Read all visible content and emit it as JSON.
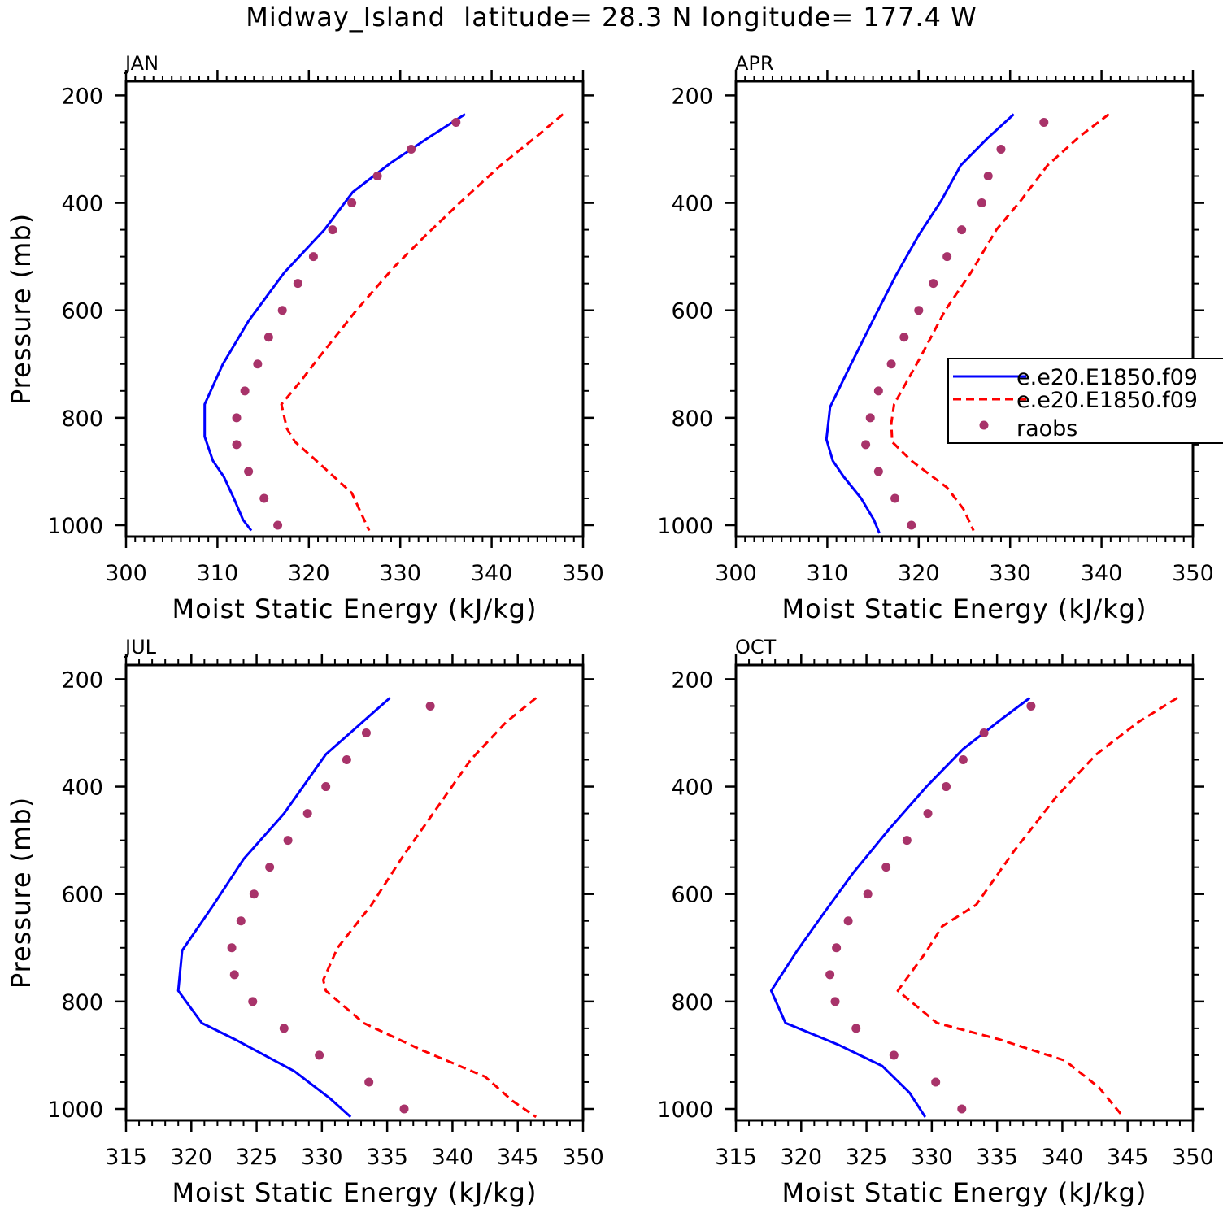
{
  "title": "Midway_Island  latitude= 28.3 N longitude= 177.4 W",
  "colors": {
    "model1": "#0000ff",
    "model2": "#ff0000",
    "raobs": "#a8336a",
    "axis": "#000000"
  },
  "legend": {
    "panel": "APR",
    "entries": [
      {
        "label": "e.e20.E1850.f09",
        "style": "solid",
        "series": "model1"
      },
      {
        "label": "e.e20.E1850.f09",
        "style": "dashed",
        "series": "model2"
      },
      {
        "label": "raobs",
        "style": "marker",
        "series": "raobs"
      }
    ]
  },
  "chart_data": [
    {
      "type": "line",
      "panel_label": "JAN",
      "xlabel": "Moist Static Energy (kJ/kg)",
      "ylabel": "Pressure (mb)",
      "xlim": [
        300,
        350
      ],
      "ylim": [
        1000,
        200
      ],
      "xticks": [
        300,
        310,
        320,
        330,
        340,
        350
      ],
      "yticks": [
        200,
        400,
        600,
        800,
        1000
      ],
      "series": [
        {
          "name": "e.e20.E1850.f09",
          "style": "solid",
          "x": [
            337.1,
            333.4,
            329.0,
            324.8,
            321.7,
            317.3,
            313.4,
            310.6,
            308.6,
            308.6,
            309.5,
            310.7,
            311.8,
            312.8,
            313.7
          ],
          "p": [
            235,
            275,
            325,
            380,
            450,
            530,
            620,
            700,
            775,
            835,
            880,
            910,
            950,
            990,
            1010
          ]
        },
        {
          "name": "e.e20.E1850.f09",
          "style": "dashed",
          "x": [
            347.8,
            345.0,
            341.0,
            336.5,
            332.8,
            329.3,
            325.2,
            321.0,
            319.2,
            317.0,
            317.6,
            318.5,
            320.5,
            324.7,
            326.6
          ],
          "p": [
            235,
            275,
            330,
            400,
            460,
            520,
            600,
            690,
            730,
            775,
            820,
            845,
            875,
            940,
            1010
          ]
        },
        {
          "name": "raobs",
          "style": "marker",
          "x": [
            336.1,
            331.2,
            327.5,
            324.7,
            322.6,
            320.5,
            318.8,
            317.1,
            315.6,
            314.4,
            313.0,
            312.1,
            312.1,
            313.4,
            315.1,
            316.6
          ],
          "p": [
            250,
            300,
            350,
            400,
            450,
            500,
            550,
            600,
            650,
            700,
            750,
            800,
            850,
            900,
            950,
            1000
          ]
        }
      ]
    },
    {
      "type": "line",
      "panel_label": "APR",
      "xlabel": "Moist Static Energy (kJ/kg)",
      "ylabel": "",
      "xlim": [
        300,
        350
      ],
      "ylim": [
        1000,
        200
      ],
      "xticks": [
        300,
        310,
        320,
        330,
        340,
        350
      ],
      "yticks": [
        200,
        400,
        600,
        800,
        1000
      ],
      "series": [
        {
          "name": "e.e20.E1850.f09",
          "style": "solid",
          "x": [
            330.4,
            327.5,
            324.6,
            322.5,
            320.0,
            317.5,
            315.1,
            312.6,
            310.3,
            309.9,
            310.6,
            311.8,
            313.7,
            315.1,
            315.7
          ],
          "p": [
            235,
            280,
            330,
            395,
            460,
            535,
            615,
            700,
            780,
            840,
            880,
            910,
            950,
            990,
            1015
          ]
        },
        {
          "name": "e.e20.E1850.f09",
          "style": "dashed",
          "x": [
            340.8,
            337.7,
            334.1,
            331.2,
            328.5,
            325.7,
            322.9,
            320.1,
            317.3,
            317.0,
            317.1,
            319.2,
            323.1,
            324.9,
            326.0
          ],
          "p": [
            235,
            275,
            330,
            395,
            450,
            530,
            600,
            690,
            775,
            810,
            845,
            880,
            930,
            970,
            1010
          ]
        },
        {
          "name": "raobs",
          "style": "marker",
          "x": [
            333.7,
            329.0,
            327.6,
            326.9,
            324.7,
            323.1,
            321.6,
            320.0,
            318.4,
            317.0,
            315.6,
            314.7,
            314.2,
            315.6,
            317.4,
            319.2
          ],
          "p": [
            250,
            300,
            350,
            400,
            450,
            500,
            550,
            600,
            650,
            700,
            750,
            800,
            850,
            900,
            950,
            1000
          ]
        }
      ]
    },
    {
      "type": "line",
      "panel_label": "JUL",
      "xlabel": "Moist Static Energy (kJ/kg)",
      "ylabel": "Pressure (mb)",
      "xlim": [
        315,
        350
      ],
      "ylim": [
        1000,
        200
      ],
      "xticks": [
        315,
        320,
        325,
        330,
        335,
        340,
        345,
        350
      ],
      "yticks": [
        200,
        400,
        600,
        800,
        1000
      ],
      "series": [
        {
          "name": "e.e20.E1850.f09",
          "style": "solid",
          "x": [
            335.2,
            333.1,
            330.3,
            327.1,
            324.0,
            321.7,
            319.3,
            319.0,
            320.8,
            323.3,
            327.9,
            330.6,
            332.2
          ],
          "p": [
            235,
            280,
            340,
            450,
            535,
            620,
            705,
            780,
            840,
            870,
            930,
            980,
            1015
          ]
        },
        {
          "name": "e.e20.E1850.f09",
          "style": "dashed",
          "x": [
            346.4,
            344.1,
            341.4,
            338.8,
            336.2,
            333.8,
            331.2,
            330.1,
            330.3,
            333.2,
            337.6,
            342.5,
            344.6,
            346.4
          ],
          "p": [
            235,
            280,
            350,
            440,
            530,
            620,
            700,
            760,
            780,
            840,
            890,
            940,
            985,
            1015
          ]
        },
        {
          "name": "raobs",
          "style": "marker",
          "x": [
            338.3,
            333.4,
            331.9,
            330.3,
            328.9,
            327.4,
            326.0,
            324.8,
            323.8,
            323.1,
            323.3,
            324.7,
            327.1,
            329.8,
            333.6,
            336.3
          ],
          "p": [
            250,
            300,
            350,
            400,
            450,
            500,
            550,
            600,
            650,
            700,
            750,
            800,
            850,
            900,
            950,
            1000
          ]
        }
      ]
    },
    {
      "type": "line",
      "panel_label": "OCT",
      "xlabel": "Moist Static Energy (kJ/kg)",
      "ylabel": "",
      "xlim": [
        315,
        350
      ],
      "ylim": [
        1000,
        200
      ],
      "xticks": [
        315,
        320,
        325,
        330,
        335,
        340,
        345,
        350
      ],
      "yticks": [
        200,
        400,
        600,
        800,
        1000
      ],
      "series": [
        {
          "name": "e.e20.E1850.f09",
          "style": "solid",
          "x": [
            337.5,
            335.3,
            332.4,
            329.6,
            326.7,
            324.0,
            321.6,
            319.7,
            317.7,
            318.8,
            322.8,
            326.2,
            328.3,
            329.5
          ],
          "p": [
            235,
            275,
            330,
            400,
            480,
            560,
            640,
            705,
            780,
            840,
            880,
            920,
            970,
            1015
          ]
        },
        {
          "name": "e.e20.E1850.f09",
          "style": "dashed",
          "x": [
            348.8,
            345.8,
            342.6,
            339.5,
            336.3,
            333.4,
            330.8,
            329.5,
            327.4,
            330.4,
            335.1,
            340.2,
            342.8,
            344.5
          ],
          "p": [
            235,
            280,
            340,
            420,
            520,
            620,
            660,
            710,
            780,
            840,
            870,
            910,
            960,
            1010
          ]
        },
        {
          "name": "raobs",
          "style": "marker",
          "x": [
            337.6,
            334.0,
            332.4,
            331.1,
            329.7,
            328.1,
            326.5,
            325.1,
            323.6,
            322.7,
            322.2,
            322.6,
            324.2,
            327.1,
            330.3,
            332.3
          ],
          "p": [
            250,
            300,
            350,
            400,
            450,
            500,
            550,
            600,
            650,
            700,
            750,
            800,
            850,
            900,
            950,
            1000
          ]
        }
      ]
    }
  ]
}
